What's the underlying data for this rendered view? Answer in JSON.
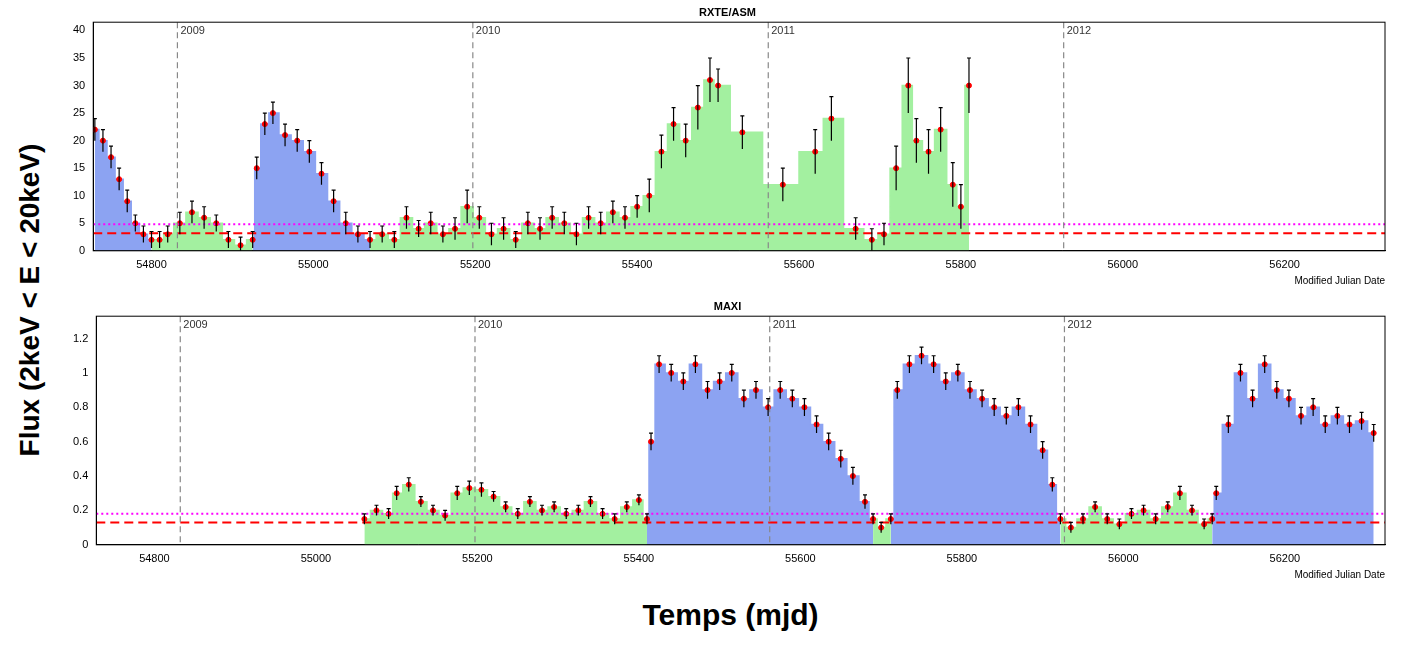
{
  "y_label": "Flux (2keV < E < 20keV)",
  "x_label": "Temps (mjd)",
  "chart_data": [
    {
      "type": "line",
      "title": "RXTE/ASM",
      "x_label": "Modified Julian Date",
      "xlim": [
        54728,
        56324
      ],
      "xticks": [
        54800,
        55000,
        55200,
        55400,
        55600,
        55800,
        56000,
        56200
      ],
      "ylim": [
        0,
        41.5
      ],
      "yticks": [
        0,
        5,
        10,
        15,
        20,
        25,
        30,
        35,
        40
      ],
      "grid": false,
      "series": [
        {
          "type": "scatter",
          "marker": "circle",
          "color": "#ff0000",
          "x": [
            54730,
            54740,
            54750,
            54760,
            54770,
            54780,
            54790,
            54800,
            54810,
            54820,
            54835,
            54850,
            54865,
            54880,
            54895,
            54910,
            54925,
            54930,
            54940,
            54950,
            54965,
            54980,
            54995,
            55010,
            55025,
            55040,
            55055,
            55070,
            55085,
            55100,
            55115,
            55130,
            55145,
            55160,
            55175,
            55190,
            55205,
            55220,
            55235,
            55250,
            55265,
            55280,
            55295,
            55310,
            55325,
            55340,
            55355,
            55370,
            55385,
            55400,
            55415,
            55430,
            55445,
            55460,
            55475,
            55490,
            55500,
            55530,
            55580,
            55620,
            55640,
            55670,
            55690,
            55705,
            55720,
            55735,
            55745,
            55760,
            55775,
            55790,
            55800,
            55810
          ],
          "values": [
            22,
            20,
            17,
            13,
            9,
            5,
            3,
            2,
            2,
            3,
            5,
            7,
            6,
            5,
            2,
            1,
            2,
            15,
            23,
            25,
            21,
            20,
            18,
            14,
            9,
            5,
            3,
            2,
            3,
            2,
            6,
            4,
            5,
            3,
            4,
            8,
            6,
            3,
            4,
            2,
            5,
            4,
            6,
            5,
            3,
            6,
            5,
            7,
            6,
            8,
            10,
            18,
            23,
            20,
            26,
            31,
            30,
            21.5,
            12,
            18,
            24,
            4,
            2,
            3,
            15,
            30,
            20,
            18,
            22,
            12,
            8,
            30
          ],
          "errors": [
            2,
            2,
            2,
            2,
            2,
            1.5,
            1.5,
            1.5,
            1.5,
            1.5,
            2,
            2,
            2,
            1.5,
            1.5,
            1.5,
            1.5,
            2,
            2,
            2,
            2,
            2,
            2,
            2,
            2,
            2,
            1.5,
            1.5,
            1.5,
            1.5,
            2,
            1.5,
            2,
            1.5,
            2,
            3,
            2,
            2,
            2,
            1.5,
            2,
            2,
            2,
            2,
            2,
            2,
            2,
            2,
            2,
            2,
            3,
            3,
            3,
            3,
            4,
            4,
            3,
            3,
            3,
            4,
            4,
            2,
            2,
            2,
            4,
            5,
            4,
            4,
            4,
            4,
            4,
            5
          ]
        },
        {
          "type": "line",
          "line_style": "steps",
          "color": "#8ca3f2",
          "x": [
            54730,
            54740,
            54750,
            54760,
            54770,
            54780,
            54790,
            54800
          ],
          "values": [
            22,
            20,
            17,
            13,
            9,
            5,
            3,
            2
          ]
        },
        {
          "type": "line",
          "line_style": "steps",
          "color": "#a3f0a0",
          "x": [
            54800,
            54810,
            54820,
            54835,
            54850,
            54865,
            54880,
            54895,
            54910,
            54925
          ],
          "values": [
            2,
            2,
            3,
            5,
            7,
            6,
            5,
            2,
            1,
            2
          ]
        },
        {
          "type": "line",
          "line_style": "steps",
          "color": "#8ca3f2",
          "x": [
            54925,
            54930,
            54940,
            54950,
            54965,
            54980,
            54995,
            55010,
            55025,
            55040,
            55055,
            55070
          ],
          "values": [
            2,
            15,
            23,
            25,
            21,
            20,
            18,
            14,
            9,
            5,
            3,
            2
          ]
        },
        {
          "type": "line",
          "line_style": "steps",
          "color": "#a3f0a0",
          "x": [
            55070,
            55085,
            55100,
            55115,
            55130,
            55145,
            55160,
            55175,
            55190,
            55205,
            55220,
            55235,
            55250,
            55265,
            55280,
            55295,
            55310,
            55325,
            55340,
            55355,
            55370,
            55385,
            55400,
            55415,
            55430,
            55445,
            55460,
            55475,
            55490,
            55500,
            55530,
            55580,
            55620,
            55640,
            55670,
            55690,
            55705,
            55720,
            55735,
            55745,
            55760,
            55775,
            55790,
            55800,
            55810
          ],
          "values": [
            2,
            3,
            2,
            6,
            4,
            5,
            3,
            4,
            8,
            6,
            3,
            4,
            2,
            5,
            4,
            6,
            5,
            3,
            6,
            5,
            7,
            6,
            8,
            10,
            18,
            23,
            20,
            26,
            31,
            30,
            21.5,
            12,
            18,
            24,
            4,
            2,
            3,
            15,
            30,
            20,
            18,
            22,
            12,
            8,
            30
          ]
        }
      ],
      "hlines": [
        {
          "value": 3.2,
          "color": "#ff0000",
          "line_style": "dashed"
        },
        {
          "value": 4.8,
          "color": "#ff00ff",
          "line_style": "dotted"
        }
      ],
      "vlines": [
        {
          "x": 54832,
          "label": "2009"
        },
        {
          "x": 55197,
          "label": "2010"
        },
        {
          "x": 55562,
          "label": "2011"
        },
        {
          "x": 55927,
          "label": "2012"
        }
      ]
    },
    {
      "type": "line",
      "title": "MAXI",
      "x_label": "Modified Julian Date",
      "xlim": [
        54728,
        56324
      ],
      "xticks": [
        54800,
        55000,
        55200,
        55400,
        55600,
        55800,
        56000,
        56200
      ],
      "ylim": [
        0,
        1.33
      ],
      "yticks": [
        0,
        0.2,
        0.4,
        0.6,
        0.8,
        1,
        1.2
      ],
      "grid": false,
      "series": [
        {
          "type": "scatter",
          "marker": "circle",
          "color": "#ff0000",
          "x": [
            55060,
            55075,
            55090,
            55100,
            55115,
            55130,
            55145,
            55160,
            55175,
            55190,
            55205,
            55220,
            55235,
            55250,
            55265,
            55280,
            55295,
            55310,
            55325,
            55340,
            55355,
            55370,
            55385,
            55400,
            55410,
            55415,
            55425,
            55440,
            55455,
            55470,
            55485,
            55500,
            55515,
            55530,
            55545,
            55560,
            55575,
            55590,
            55605,
            55620,
            55635,
            55650,
            55665,
            55680,
            55690,
            55700,
            55712,
            55720,
            55735,
            55750,
            55765,
            55780,
            55795,
            55810,
            55825,
            55840,
            55855,
            55870,
            55885,
            55900,
            55912,
            55922,
            55935,
            55950,
            55965,
            55980,
            55995,
            56010,
            56025,
            56040,
            56055,
            56070,
            56085,
            56100,
            56110,
            56115,
            56130,
            56145,
            56160,
            56175,
            56190,
            56205,
            56220,
            56235,
            56250,
            56265,
            56280,
            56295,
            56310
          ],
          "values": [
            0.15,
            0.2,
            0.18,
            0.3,
            0.35,
            0.25,
            0.2,
            0.17,
            0.3,
            0.33,
            0.32,
            0.28,
            0.22,
            0.18,
            0.25,
            0.2,
            0.22,
            0.18,
            0.2,
            0.25,
            0.18,
            0.15,
            0.22,
            0.26,
            0.15,
            0.6,
            1.05,
            1,
            0.95,
            1.05,
            0.9,
            0.95,
            1,
            0.85,
            0.9,
            0.8,
            0.9,
            0.85,
            0.8,
            0.7,
            0.6,
            0.5,
            0.4,
            0.25,
            0.15,
            0.1,
            0.15,
            0.9,
            1.05,
            1.1,
            1.05,
            0.95,
            1,
            0.9,
            0.85,
            0.8,
            0.75,
            0.8,
            0.7,
            0.55,
            0.35,
            0.15,
            0.1,
            0.15,
            0.22,
            0.15,
            0.12,
            0.18,
            0.2,
            0.15,
            0.22,
            0.3,
            0.2,
            0.12,
            0.15,
            0.3,
            0.7,
            1,
            0.85,
            1.05,
            0.9,
            0.85,
            0.75,
            0.8,
            0.7,
            0.75,
            0.7,
            0.72,
            0.65
          ],
          "errors": [
            0.03,
            0.03,
            0.03,
            0.04,
            0.04,
            0.03,
            0.03,
            0.03,
            0.04,
            0.04,
            0.04,
            0.03,
            0.03,
            0.03,
            0.03,
            0.03,
            0.03,
            0.03,
            0.03,
            0.03,
            0.03,
            0.03,
            0.03,
            0.03,
            0.03,
            0.05,
            0.05,
            0.05,
            0.05,
            0.05,
            0.05,
            0.05,
            0.05,
            0.05,
            0.05,
            0.05,
            0.05,
            0.05,
            0.05,
            0.05,
            0.05,
            0.05,
            0.05,
            0.04,
            0.03,
            0.03,
            0.03,
            0.05,
            0.05,
            0.05,
            0.05,
            0.05,
            0.05,
            0.05,
            0.05,
            0.05,
            0.05,
            0.05,
            0.05,
            0.05,
            0.04,
            0.03,
            0.03,
            0.03,
            0.03,
            0.03,
            0.03,
            0.03,
            0.03,
            0.03,
            0.03,
            0.04,
            0.03,
            0.03,
            0.03,
            0.04,
            0.05,
            0.05,
            0.05,
            0.05,
            0.05,
            0.05,
            0.05,
            0.05,
            0.05,
            0.05,
            0.05,
            0.05,
            0.05
          ]
        },
        {
          "type": "line",
          "line_style": "steps",
          "color": "#a3f0a0",
          "x": [
            55060,
            55075,
            55090,
            55100,
            55115,
            55130,
            55145,
            55160,
            55175,
            55190,
            55205,
            55220,
            55235,
            55250,
            55265,
            55280,
            55295,
            55310,
            55325,
            55340,
            55355,
            55370,
            55385,
            55400,
            55410
          ],
          "values": [
            0.15,
            0.2,
            0.18,
            0.3,
            0.35,
            0.25,
            0.2,
            0.17,
            0.3,
            0.33,
            0.32,
            0.28,
            0.22,
            0.18,
            0.25,
            0.2,
            0.22,
            0.18,
            0.2,
            0.25,
            0.18,
            0.15,
            0.22,
            0.26,
            0.15
          ]
        },
        {
          "type": "line",
          "line_style": "steps",
          "color": "#8ca3f2",
          "x": [
            55410,
            55415,
            55425,
            55440,
            55455,
            55470,
            55485,
            55500,
            55515,
            55530,
            55545,
            55560,
            55575,
            55590,
            55605,
            55620,
            55635,
            55650,
            55665,
            55680,
            55690
          ],
          "values": [
            0.15,
            0.6,
            1.05,
            1,
            0.95,
            1.05,
            0.9,
            0.95,
            1,
            0.85,
            0.9,
            0.8,
            0.9,
            0.85,
            0.8,
            0.7,
            0.6,
            0.5,
            0.4,
            0.25,
            0.15
          ]
        },
        {
          "type": "line",
          "line_style": "steps",
          "color": "#a3f0a0",
          "x": [
            55690,
            55700,
            55712
          ],
          "values": [
            0.15,
            0.1,
            0.15
          ]
        },
        {
          "type": "line",
          "line_style": "steps",
          "color": "#8ca3f2",
          "x": [
            55712,
            55720,
            55735,
            55750,
            55765,
            55780,
            55795,
            55810,
            55825,
            55840,
            55855,
            55870,
            55885,
            55900,
            55912,
            55922
          ],
          "values": [
            0.15,
            0.9,
            1.05,
            1.1,
            1.05,
            0.95,
            1,
            0.9,
            0.85,
            0.8,
            0.75,
            0.8,
            0.7,
            0.55,
            0.35,
            0.15
          ]
        },
        {
          "type": "line",
          "line_style": "steps",
          "color": "#a3f0a0",
          "x": [
            55922,
            55935,
            55950,
            55965,
            55980,
            55995,
            56010,
            56025,
            56040,
            56055,
            56070,
            56085,
            56100,
            56110
          ],
          "values": [
            0.15,
            0.1,
            0.15,
            0.22,
            0.15,
            0.12,
            0.18,
            0.2,
            0.15,
            0.22,
            0.3,
            0.2,
            0.12,
            0.15
          ]
        },
        {
          "type": "line",
          "line_style": "steps",
          "color": "#8ca3f2",
          "x": [
            56110,
            56115,
            56130,
            56145,
            56160,
            56175,
            56190,
            56205,
            56220,
            56235,
            56250,
            56265,
            56280,
            56295,
            56310
          ],
          "values": [
            0.15,
            0.3,
            0.7,
            1,
            0.85,
            1.05,
            0.9,
            0.85,
            0.75,
            0.8,
            0.7,
            0.75,
            0.7,
            0.72,
            0.65
          ]
        }
      ],
      "hlines": [
        {
          "value": 0.13,
          "color": "#ff0000",
          "line_style": "dashed"
        },
        {
          "value": 0.18,
          "color": "#ff00ff",
          "line_style": "dotted"
        }
      ],
      "vlines": [
        {
          "x": 54832,
          "label": "2009"
        },
        {
          "x": 55197,
          "label": "2010"
        },
        {
          "x": 55562,
          "label": "2011"
        },
        {
          "x": 55927,
          "label": "2012"
        }
      ]
    }
  ]
}
